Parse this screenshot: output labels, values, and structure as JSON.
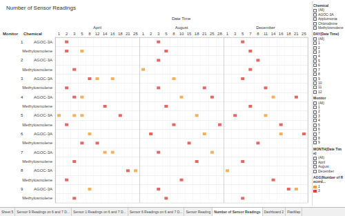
{
  "chart_data": {
    "type": "scatter",
    "title": "Number of Sensor Readings",
    "x_title": "Date Time",
    "row_titles": [
      "Monitor",
      "Chemical"
    ],
    "months": [
      {
        "name": "April",
        "days": [
          1,
          2,
          3,
          5,
          8,
          12,
          14,
          16,
          18,
          21,
          25
        ]
      },
      {
        "name": "August",
        "days": [
          1,
          2,
          3,
          5,
          8,
          10,
          15,
          18,
          21,
          25,
          28
        ]
      },
      {
        "name": "December",
        "days": [
          1,
          3,
          5,
          7,
          8,
          11,
          14,
          16,
          18,
          21,
          25
        ]
      }
    ],
    "monitors": [
      "1",
      "2",
      "3",
      "4",
      "5",
      "6",
      "7",
      "8",
      "9"
    ],
    "chemicals": [
      "AGOC-3A",
      "Methylosmolene"
    ],
    "marker": "square",
    "grid": true,
    "legend_title": "AGG(Number of Record...",
    "series": [
      {
        "name": "1",
        "color": "#f39c34",
        "points": [
          [
            "April",
            5,
            "1",
            "Methylosmolene"
          ],
          [
            "August",
            1,
            "2",
            "Methylosmolene"
          ],
          [
            "April",
            12,
            "3",
            "AGOC-3A"
          ],
          [
            "April",
            16,
            "3",
            "AGOC-3A"
          ],
          [
            "August",
            8,
            "3",
            "AGOC-3A"
          ],
          [
            "April",
            5,
            "4",
            "AGOC-3A"
          ],
          [
            "August",
            10,
            "4",
            "AGOC-3A"
          ],
          [
            "December",
            14,
            "4",
            "AGOC-3A"
          ],
          [
            "April",
            1,
            "5",
            "AGOC-3A"
          ],
          [
            "April",
            3,
            "5",
            "AGOC-3A"
          ],
          [
            "April",
            5,
            "5",
            "AGOC-3A"
          ],
          [
            "August",
            18,
            "5",
            "AGOC-3A"
          ],
          [
            "December",
            11,
            "5",
            "AGOC-3A"
          ],
          [
            "April",
            8,
            "6",
            "AGOC-3A"
          ],
          [
            "August",
            21,
            "6",
            "AGOC-3A"
          ],
          [
            "December",
            16,
            "6",
            "AGOC-3A"
          ],
          [
            "April",
            14,
            "7",
            "AGOC-3A"
          ],
          [
            "April",
            16,
            "7",
            "AGOC-3A"
          ],
          [
            "August",
            25,
            "7",
            "AGOC-3A"
          ],
          [
            "April",
            25,
            "8",
            "AGOC-3A"
          ],
          [
            "December",
            1,
            "8",
            "AGOC-3A"
          ],
          [
            "April",
            8,
            "9",
            "AGOC-3A"
          ],
          [
            "December",
            21,
            "9",
            "AGOC-3A"
          ]
        ]
      },
      {
        "name": "3",
        "color": "#e0403a",
        "points": [
          [
            "April",
            2,
            "1",
            "AGOC-3A"
          ],
          [
            "April",
            2,
            "1",
            "Methylosmolene"
          ],
          [
            "August",
            3,
            "1",
            "AGOC-3A"
          ],
          [
            "August",
            5,
            "1",
            "Methylosmolene"
          ],
          [
            "December",
            5,
            "1",
            "AGOC-3A"
          ],
          [
            "December",
            7,
            "1",
            "Methylosmolene"
          ],
          [
            "April",
            3,
            "2",
            "Methylosmolene"
          ],
          [
            "August",
            3,
            "2",
            "AGOC-3A"
          ],
          [
            "December",
            7,
            "2",
            "Methylosmolene"
          ],
          [
            "December",
            8,
            "2",
            "AGOC-3A"
          ],
          [
            "April",
            2,
            "3",
            "Methylosmolene"
          ],
          [
            "April",
            8,
            "3",
            "AGOC-3A"
          ],
          [
            "August",
            3,
            "3",
            "Methylosmolene"
          ],
          [
            "August",
            21,
            "3",
            "Methylosmolene"
          ],
          [
            "December",
            5,
            "3",
            "AGOC-3A"
          ],
          [
            "December",
            11,
            "3",
            "Methylosmolene"
          ],
          [
            "April",
            3,
            "4",
            "AGOC-3A"
          ],
          [
            "April",
            14,
            "4",
            "Methylosmolene"
          ],
          [
            "August",
            5,
            "4",
            "Methylosmolene"
          ],
          [
            "August",
            25,
            "4",
            "AGOC-3A"
          ],
          [
            "December",
            7,
            "4",
            "Methylosmolene"
          ],
          [
            "December",
            21,
            "4",
            "AGOC-3A"
          ],
          [
            "April",
            2,
            "5",
            "Methylosmolene"
          ],
          [
            "April",
            18,
            "5",
            "AGOC-3A"
          ],
          [
            "August",
            8,
            "5",
            "Methylosmolene"
          ],
          [
            "August",
            28,
            "5",
            "Methylosmolene"
          ],
          [
            "December",
            3,
            "5",
            "AGOC-3A"
          ],
          [
            "December",
            16,
            "5",
            "Methylosmolene"
          ],
          [
            "April",
            5,
            "6",
            "Methylosmolene"
          ],
          [
            "April",
            12,
            "6",
            "Methylosmolene"
          ],
          [
            "August",
            2,
            "6",
            "AGOC-3A"
          ],
          [
            "August",
            15,
            "6",
            "Methylosmolene"
          ],
          [
            "December",
            8,
            "6",
            "Methylosmolene"
          ],
          [
            "December",
            25,
            "6",
            "AGOC-3A"
          ],
          [
            "April",
            3,
            "7",
            "Methylosmolene"
          ],
          [
            "August",
            3,
            "7",
            "AGOC-3A"
          ],
          [
            "August",
            18,
            "7",
            "Methylosmolene"
          ],
          [
            "December",
            5,
            "7",
            "Methylosmolene"
          ],
          [
            "April",
            2,
            "8",
            "Methylosmolene"
          ],
          [
            "April",
            21,
            "8",
            "AGOC-3A"
          ],
          [
            "August",
            10,
            "8",
            "Methylosmolene"
          ],
          [
            "December",
            14,
            "8",
            "Methylosmolene"
          ],
          [
            "April",
            3,
            "9",
            "Methylosmolene"
          ],
          [
            "August",
            3,
            "9",
            "AGOC-3A"
          ],
          [
            "August",
            5,
            "9",
            "Methylosmolene"
          ],
          [
            "December",
            5,
            "9",
            "Methylosmolene"
          ],
          [
            "December",
            18,
            "9",
            "AGOC-3A"
          ]
        ]
      }
    ]
  },
  "filters": [
    {
      "title": "Chemical",
      "items": [
        "(All)",
        "AGOC-3A",
        "Appluimonia",
        "Chlorodinine",
        "Methylosmolene"
      ]
    },
    {
      "title": "DAY(Date Time)",
      "items": [
        "(All)",
        "1",
        "2",
        "3",
        "4",
        "5",
        "6",
        "7",
        "8",
        "9",
        "10",
        "11",
        "12"
      ]
    },
    {
      "title": "Monitor",
      "items": [
        "(All)",
        "1",
        "2",
        "3",
        "4",
        "5",
        "6",
        "7",
        "8",
        "9"
      ]
    },
    {
      "title": "MONTH(Date Time)",
      "items": [
        "(All)",
        "April",
        "August",
        "December"
      ]
    }
  ],
  "tabs": [
    "Sheet 5",
    "Sensor 9 Readings on 6 and 7 D...",
    "Sensor 1 Readings on 6 and 7 D...",
    "Sensor 6 Readings on 6 and 7 D...",
    "Sensor Reading",
    "Number of Sensor Readings",
    "Dashboard 2",
    "FlasMap"
  ],
  "active_tab": "Number of Sensor Readings"
}
